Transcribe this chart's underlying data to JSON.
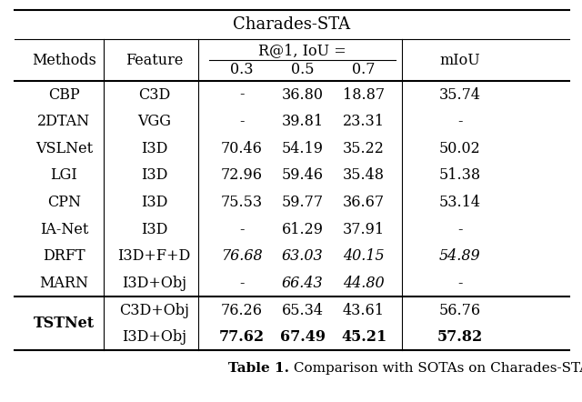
{
  "title": "Charades-STA",
  "rows": [
    {
      "method": "CBP",
      "feature": "C3D",
      "r03": "-",
      "r05": "36.80",
      "r07": "18.87",
      "miou": "35.74",
      "italic": false,
      "bold_method": false,
      "bold_vals": false
    },
    {
      "method": "2DTAN",
      "feature": "VGG",
      "r03": "-",
      "r05": "39.81",
      "r07": "23.31",
      "miou": "-",
      "italic": false,
      "bold_method": false,
      "bold_vals": false
    },
    {
      "method": "VSLNet",
      "feature": "I3D",
      "r03": "70.46",
      "r05": "54.19",
      "r07": "35.22",
      "miou": "50.02",
      "italic": false,
      "bold_method": false,
      "bold_vals": false
    },
    {
      "method": "LGI",
      "feature": "I3D",
      "r03": "72.96",
      "r05": "59.46",
      "r07": "35.48",
      "miou": "51.38",
      "italic": false,
      "bold_method": false,
      "bold_vals": false
    },
    {
      "method": "CPN",
      "feature": "I3D",
      "r03": "75.53",
      "r05": "59.77",
      "r07": "36.67",
      "miou": "53.14",
      "italic": false,
      "bold_method": false,
      "bold_vals": false
    },
    {
      "method": "IA-Net",
      "feature": "I3D",
      "r03": "-",
      "r05": "61.29",
      "r07": "37.91",
      "miou": "-",
      "italic": false,
      "bold_method": false,
      "bold_vals": false
    },
    {
      "method": "DRFT",
      "feature": "I3D+F+D",
      "r03": "76.68",
      "r05": "63.03",
      "r07": "40.15",
      "miou": "54.89",
      "italic": true,
      "bold_method": false,
      "bold_vals": false
    },
    {
      "method": "MARN",
      "feature": "I3D+Obj",
      "r03": "-",
      "r05": "66.43",
      "r07": "44.80",
      "miou": "-",
      "italic": true,
      "bold_method": false,
      "bold_vals": false
    },
    {
      "method": "TSTNet",
      "feature": "C3D+Obj",
      "r03": "76.26",
      "r05": "65.34",
      "r07": "43.61",
      "miou": "56.76",
      "italic": false,
      "bold_method": true,
      "bold_vals": false
    },
    {
      "method": "TSTNet",
      "feature": "I3D+Obj",
      "r03": "77.62",
      "r05": "67.49",
      "r07": "45.21",
      "miou": "57.82",
      "italic": false,
      "bold_method": true,
      "bold_vals": true
    }
  ],
  "tstnet_rows": [
    8,
    9
  ],
  "bg_color": "#ffffff",
  "caption_bold": "Table 1.",
  "caption_normal": " Comparison with SOTAs on Charades-STA",
  "font_size": 11.5,
  "title_font_size": 13,
  "caption_font_size": 11
}
